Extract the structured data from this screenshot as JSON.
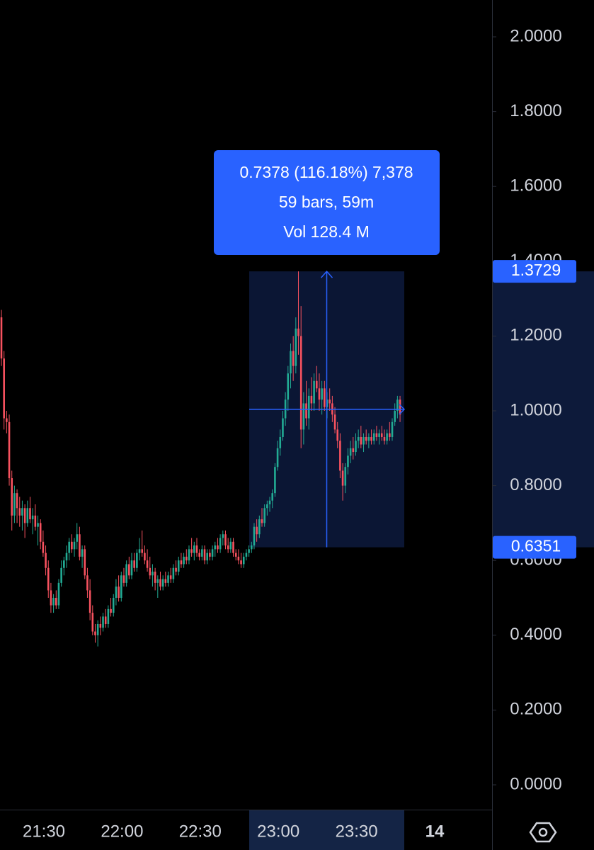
{
  "chart_data": {
    "type": "candlestick",
    "up_color": "#22ab94",
    "down_color": "#f7525f",
    "ylim": [
      0,
      2
    ],
    "yticks": [
      {
        "value": 0,
        "label": "0.0000"
      },
      {
        "value": 0.2,
        "label": "0.2000"
      },
      {
        "value": 0.4,
        "label": "0.4000"
      },
      {
        "value": 0.6,
        "label": "0.6000"
      },
      {
        "value": 0.8,
        "label": "0.8000"
      },
      {
        "value": 1,
        "label": "1.0000"
      },
      {
        "value": 1.2,
        "label": "1.2000"
      },
      {
        "value": 1.4,
        "label": "1.4000"
      },
      {
        "value": 1.6,
        "label": "1.6000"
      },
      {
        "value": 1.8,
        "label": "1.8000"
      },
      {
        "value": 2,
        "label": "2.0000"
      }
    ],
    "xtick_labels": [
      "21:30",
      "22:00",
      "22:30",
      "23:00",
      "23:30",
      "14"
    ],
    "measure": {
      "low": 0.6351,
      "high": 1.3729,
      "lines": [
        "0.7378 (116.18%) 7,378",
        "59 bars, 59m",
        "Vol 128.4 M"
      ],
      "color": "#2962ff"
    },
    "candles": [
      [
        1.25,
        1.27,
        1.12,
        1.14
      ],
      [
        1.14,
        1.16,
        0.95,
        0.98
      ],
      [
        0.98,
        1.0,
        0.94,
        0.97
      ],
      [
        0.97,
        0.99,
        0.8,
        0.82
      ],
      [
        0.82,
        0.84,
        0.68,
        0.72
      ],
      [
        0.72,
        0.8,
        0.7,
        0.78
      ],
      [
        0.78,
        0.79,
        0.7,
        0.74
      ],
      [
        0.74,
        0.77,
        0.69,
        0.72
      ],
      [
        0.72,
        0.76,
        0.68,
        0.74
      ],
      [
        0.74,
        0.75,
        0.66,
        0.7
      ],
      [
        0.7,
        0.76,
        0.69,
        0.74
      ],
      [
        0.74,
        0.77,
        0.7,
        0.71
      ],
      [
        0.71,
        0.74,
        0.67,
        0.72
      ],
      [
        0.72,
        0.75,
        0.68,
        0.69
      ],
      [
        0.69,
        0.72,
        0.64,
        0.7
      ],
      [
        0.7,
        0.71,
        0.63,
        0.65
      ],
      [
        0.65,
        0.68,
        0.61,
        0.62
      ],
      [
        0.62,
        0.64,
        0.56,
        0.58
      ],
      [
        0.58,
        0.6,
        0.5,
        0.52
      ],
      [
        0.52,
        0.54,
        0.46,
        0.48
      ],
      [
        0.48,
        0.51,
        0.46,
        0.5
      ],
      [
        0.5,
        0.52,
        0.47,
        0.48
      ],
      [
        0.48,
        0.55,
        0.47,
        0.54
      ],
      [
        0.54,
        0.6,
        0.53,
        0.58
      ],
      [
        0.58,
        0.61,
        0.56,
        0.6
      ],
      [
        0.6,
        0.64,
        0.58,
        0.62
      ],
      [
        0.62,
        0.66,
        0.6,
        0.65
      ],
      [
        0.65,
        0.67,
        0.62,
        0.63
      ],
      [
        0.63,
        0.66,
        0.61,
        0.65
      ],
      [
        0.65,
        0.7,
        0.63,
        0.67
      ],
      [
        0.67,
        0.69,
        0.6,
        0.61
      ],
      [
        0.61,
        0.64,
        0.58,
        0.63
      ],
      [
        0.63,
        0.64,
        0.55,
        0.56
      ],
      [
        0.56,
        0.58,
        0.5,
        0.52
      ],
      [
        0.52,
        0.55,
        0.44,
        0.46
      ],
      [
        0.46,
        0.48,
        0.4,
        0.41
      ],
      [
        0.41,
        0.43,
        0.38,
        0.4
      ],
      [
        0.4,
        0.44,
        0.37,
        0.43
      ],
      [
        0.43,
        0.45,
        0.4,
        0.42
      ],
      [
        0.42,
        0.46,
        0.41,
        0.45
      ],
      [
        0.45,
        0.47,
        0.42,
        0.43
      ],
      [
        0.43,
        0.48,
        0.42,
        0.47
      ],
      [
        0.47,
        0.5,
        0.45,
        0.46
      ],
      [
        0.46,
        0.51,
        0.45,
        0.5
      ],
      [
        0.5,
        0.55,
        0.48,
        0.53
      ],
      [
        0.53,
        0.56,
        0.49,
        0.5
      ],
      [
        0.5,
        0.57,
        0.49,
        0.56
      ],
      [
        0.56,
        0.58,
        0.53,
        0.54
      ],
      [
        0.54,
        0.6,
        0.53,
        0.59
      ],
      [
        0.59,
        0.61,
        0.55,
        0.56
      ],
      [
        0.56,
        0.62,
        0.55,
        0.6
      ],
      [
        0.6,
        0.62,
        0.57,
        0.58
      ],
      [
        0.58,
        0.63,
        0.57,
        0.62
      ],
      [
        0.62,
        0.66,
        0.6,
        0.63
      ],
      [
        0.63,
        0.68,
        0.61,
        0.62
      ],
      [
        0.62,
        0.64,
        0.59,
        0.6
      ],
      [
        0.6,
        0.63,
        0.57,
        0.58
      ],
      [
        0.58,
        0.61,
        0.55,
        0.56
      ],
      [
        0.56,
        0.59,
        0.53,
        0.57
      ],
      [
        0.57,
        0.58,
        0.52,
        0.54
      ],
      [
        0.54,
        0.56,
        0.5,
        0.55
      ],
      [
        0.55,
        0.57,
        0.52,
        0.53
      ],
      [
        0.53,
        0.56,
        0.52,
        0.55
      ],
      [
        0.55,
        0.57,
        0.53,
        0.54
      ],
      [
        0.54,
        0.57,
        0.53,
        0.56
      ],
      [
        0.56,
        0.58,
        0.54,
        0.55
      ],
      [
        0.55,
        0.59,
        0.54,
        0.58
      ],
      [
        0.58,
        0.6,
        0.56,
        0.57
      ],
      [
        0.57,
        0.61,
        0.56,
        0.6
      ],
      [
        0.6,
        0.62,
        0.58,
        0.59
      ],
      [
        0.59,
        0.62,
        0.58,
        0.61
      ],
      [
        0.61,
        0.63,
        0.59,
        0.6
      ],
      [
        0.6,
        0.64,
        0.59,
        0.63
      ],
      [
        0.63,
        0.66,
        0.61,
        0.62
      ],
      [
        0.62,
        0.65,
        0.6,
        0.64
      ],
      [
        0.64,
        0.66,
        0.61,
        0.62
      ],
      [
        0.62,
        0.63,
        0.6,
        0.61
      ],
      [
        0.61,
        0.64,
        0.6,
        0.63
      ],
      [
        0.63,
        0.64,
        0.59,
        0.6
      ],
      [
        0.6,
        0.63,
        0.59,
        0.62
      ],
      [
        0.62,
        0.63,
        0.6,
        0.61
      ],
      [
        0.61,
        0.64,
        0.6,
        0.63
      ],
      [
        0.63,
        0.65,
        0.61,
        0.64
      ],
      [
        0.64,
        0.66,
        0.62,
        0.63
      ],
      [
        0.63,
        0.67,
        0.62,
        0.66
      ],
      [
        0.66,
        0.68,
        0.64,
        0.67
      ],
      [
        0.67,
        0.68,
        0.63,
        0.64
      ],
      [
        0.64,
        0.66,
        0.62,
        0.63
      ],
      [
        0.63,
        0.66,
        0.62,
        0.65
      ],
      [
        0.65,
        0.66,
        0.61,
        0.62
      ],
      [
        0.62,
        0.63,
        0.6,
        0.61
      ],
      [
        0.61,
        0.63,
        0.59,
        0.6
      ],
      [
        0.6,
        0.62,
        0.58,
        0.59
      ],
      [
        0.59,
        0.62,
        0.58,
        0.61
      ],
      [
        0.61,
        0.63,
        0.6,
        0.62
      ],
      [
        0.62,
        0.64,
        0.61,
        0.63
      ],
      [
        0.63,
        0.65,
        0.62,
        0.64
      ],
      [
        0.64,
        0.7,
        0.63,
        0.69
      ],
      [
        0.69,
        0.71,
        0.65,
        0.67
      ],
      [
        0.67,
        0.72,
        0.66,
        0.71
      ],
      [
        0.71,
        0.74,
        0.69,
        0.7
      ],
      [
        0.7,
        0.75,
        0.69,
        0.74
      ],
      [
        0.74,
        0.76,
        0.72,
        0.75
      ],
      [
        0.75,
        0.77,
        0.73,
        0.76
      ],
      [
        0.76,
        0.79,
        0.74,
        0.78
      ],
      [
        0.78,
        0.86,
        0.77,
        0.85
      ],
      [
        0.85,
        0.92,
        0.84,
        0.9
      ],
      [
        0.9,
        0.95,
        0.88,
        0.93
      ],
      [
        0.93,
        1.0,
        0.92,
        0.98
      ],
      [
        0.98,
        1.05,
        0.96,
        1.03
      ],
      [
        1.03,
        1.12,
        1.0,
        1.1
      ],
      [
        1.1,
        1.18,
        1.06,
        1.16
      ],
      [
        1.16,
        1.2,
        1.08,
        1.12
      ],
      [
        1.12,
        1.25,
        1.1,
        1.22
      ],
      [
        1.22,
        1.3729,
        1.15,
        1.2
      ],
      [
        1.2,
        1.28,
        0.9,
        0.95
      ],
      [
        0.95,
        1.05,
        0.91,
        1.02
      ],
      [
        1.02,
        1.08,
        0.96,
        0.98
      ],
      [
        0.98,
        1.06,
        0.95,
        1.04
      ],
      [
        1.04,
        1.09,
        1.0,
        1.02
      ],
      [
        1.02,
        1.1,
        1.0,
        1.08
      ],
      [
        1.08,
        1.12,
        1.05,
        1.06
      ],
      [
        1.06,
        1.1,
        1.0,
        1.03
      ],
      [
        1.03,
        1.08,
        0.99,
        1.06
      ],
      [
        1.06,
        1.08,
        1.0,
        1.01
      ],
      [
        1.01,
        1.05,
        0.98,
        1.03
      ],
      [
        1.03,
        1.06,
        1.0,
        1.02
      ],
      [
        1.02,
        1.04,
        0.97,
        0.99
      ],
      [
        0.99,
        1.01,
        0.94,
        0.95
      ],
      [
        0.95,
        0.97,
        0.9,
        0.92
      ],
      [
        0.92,
        0.94,
        0.82,
        0.84
      ],
      [
        0.84,
        0.86,
        0.76,
        0.8
      ],
      [
        0.8,
        0.86,
        0.78,
        0.85
      ],
      [
        0.85,
        0.9,
        0.83,
        0.88
      ],
      [
        0.88,
        0.92,
        0.86,
        0.9
      ],
      [
        0.9,
        0.93,
        0.87,
        0.89
      ],
      [
        0.89,
        0.94,
        0.88,
        0.92
      ],
      [
        0.92,
        0.95,
        0.9,
        0.93
      ],
      [
        0.93,
        0.96,
        0.9,
        0.91
      ],
      [
        0.91,
        0.94,
        0.89,
        0.93
      ],
      [
        0.93,
        0.95,
        0.91,
        0.92
      ],
      [
        0.92,
        0.94,
        0.9,
        0.93
      ],
      [
        0.93,
        0.95,
        0.91,
        0.92
      ],
      [
        0.92,
        0.95,
        0.91,
        0.94
      ],
      [
        0.94,
        0.96,
        0.92,
        0.93
      ],
      [
        0.93,
        0.95,
        0.91,
        0.94
      ],
      [
        0.94,
        0.96,
        0.92,
        0.93
      ],
      [
        0.93,
        0.95,
        0.91,
        0.92
      ],
      [
        0.92,
        0.95,
        0.91,
        0.94
      ],
      [
        0.94,
        0.97,
        0.92,
        0.93
      ],
      [
        0.93,
        0.98,
        0.92,
        0.97
      ],
      [
        0.97,
        1.02,
        0.96,
        1.0
      ],
      [
        1.0,
        1.04,
        0.98,
        1.03
      ],
      [
        1.03,
        1.04,
        0.97,
        0.99
      ]
    ]
  }
}
